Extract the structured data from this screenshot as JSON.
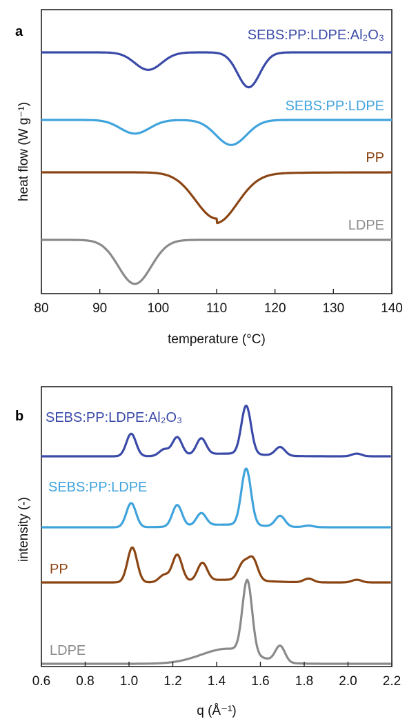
{
  "chart_data": [
    {
      "panel": "a",
      "type": "line",
      "xlabel": "temperature (°C)",
      "ylabel": "heat flow (W g⁻¹)",
      "xlim": [
        80,
        140
      ],
      "xticks": [
        80,
        90,
        100,
        110,
        120,
        130,
        140
      ],
      "grid": false,
      "legend": "inline labels above each curve",
      "series": [
        {
          "name": "SEBS:PP:LDPE:Al₂O₃",
          "color": "#3a4aa8",
          "baseline": 0,
          "dips": [
            {
              "center": 98.3,
              "depth": 0.23,
              "width": 2.3
            },
            {
              "center": 115.5,
              "depth": 0.46,
              "width": 1.9
            }
          ]
        },
        {
          "name": "SEBS:PP:LDPE",
          "color": "#3fa3dc",
          "baseline": 0,
          "dips": [
            {
              "center": 96.0,
              "depth": 0.18,
              "width": 2.5
            },
            {
              "center": 112.5,
              "depth": 0.33,
              "width": 2.6
            }
          ]
        },
        {
          "name": "PP",
          "color": "#8b4513",
          "baseline": 0,
          "dips": [
            {
              "center": 110.0,
              "depth": 0.61,
              "width": 3.6
            }
          ]
        },
        {
          "name": "LDPE",
          "color": "#8a8a8a",
          "baseline": 0,
          "dips": [
            {
              "center": 96.0,
              "depth": 0.58,
              "width": 2.8
            }
          ]
        }
      ]
    },
    {
      "panel": "b",
      "type": "line",
      "xlabel": "q (Å⁻¹)",
      "ylabel": "intensity (-)",
      "xlim": [
        0.6,
        2.2
      ],
      "xticks": [
        0.6,
        0.8,
        1.0,
        1.2,
        1.4,
        1.6,
        1.8,
        2.0,
        2.2
      ],
      "grid": false,
      "legend": "inline labels above each curve",
      "series": [
        {
          "name": "SEBS:PP:LDPE:Al₂O₃",
          "color": "#3a4aa8",
          "peaks": [
            {
              "q": 1.01,
              "h": 0.42
            },
            {
              "q": 1.16,
              "h": 0.12
            },
            {
              "q": 1.22,
              "h": 0.34
            },
            {
              "q": 1.33,
              "h": 0.3
            },
            {
              "q": 1.535,
              "h": 0.9
            },
            {
              "q": 1.69,
              "h": 0.16
            },
            {
              "q": 2.04,
              "h": 0.05
            }
          ]
        },
        {
          "name": "SEBS:PP:LDPE",
          "color": "#3fa3dc",
          "peaks": [
            {
              "q": 1.01,
              "h": 0.45
            },
            {
              "q": 1.22,
              "h": 0.4
            },
            {
              "q": 1.33,
              "h": 0.23
            },
            {
              "q": 1.535,
              "h": 1.05
            },
            {
              "q": 1.69,
              "h": 0.2
            },
            {
              "q": 1.82,
              "h": 0.03
            }
          ]
        },
        {
          "name": "PP",
          "color": "#8b4513",
          "peaks": [
            {
              "q": 1.015,
              "h": 0.65
            },
            {
              "q": 1.16,
              "h": 0.13
            },
            {
              "q": 1.22,
              "h": 0.5
            },
            {
              "q": 1.335,
              "h": 0.33
            },
            {
              "q": 1.52,
              "h": 0.3
            },
            {
              "q": 1.565,
              "h": 0.4
            },
            {
              "q": 1.82,
              "h": 0.07
            },
            {
              "q": 2.04,
              "h": 0.05
            }
          ]
        },
        {
          "name": "LDPE",
          "color": "#8a8a8a",
          "peaks": [
            {
              "q": 1.54,
              "h": 1.35
            },
            {
              "q": 1.69,
              "h": 0.3
            }
          ]
        }
      ]
    }
  ]
}
